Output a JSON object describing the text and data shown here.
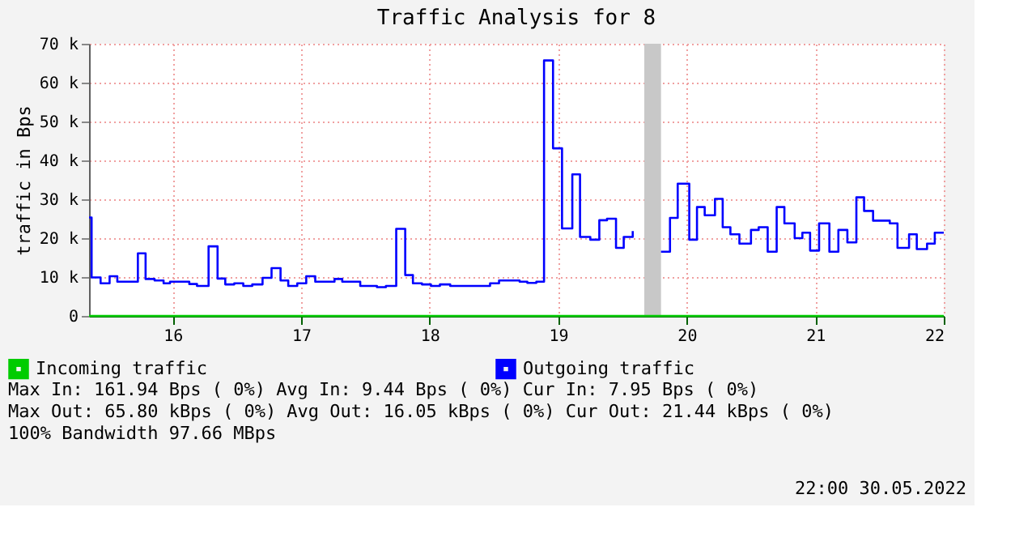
{
  "chart_data": {
    "type": "step",
    "title": "Traffic Analysis for 8",
    "ylabel": "traffic in Bps",
    "xlim": [
      15.35,
      22
    ],
    "xticks": [
      16,
      17,
      18,
      19,
      20,
      21,
      22
    ],
    "ylim": [
      0,
      70000
    ],
    "yticks": [
      0,
      {
        "value": 10000,
        "label": "10 k"
      },
      {
        "value": 20000,
        "label": "20 k"
      },
      {
        "value": 30000,
        "label": "30 k"
      },
      {
        "value": 40000,
        "label": "40 k"
      },
      {
        "value": 50000,
        "label": "50 k"
      },
      {
        "value": 60000,
        "label": "60 k"
      },
      {
        "value": 70000,
        "label": "70 k"
      }
    ],
    "grid": true,
    "legend": "bottom left",
    "bands": [
      {
        "axis": "x",
        "from": 19.67,
        "to": 19.8,
        "color": "#c8c8c8"
      }
    ],
    "series": [
      {
        "name": "Incoming traffic",
        "color": "#00cc00",
        "x": [
          15.35,
          22
        ],
        "values": [
          0,
          0
        ]
      },
      {
        "name": "Outgoing traffic",
        "color": "#0000ff",
        "x": [
          15.35,
          15.37,
          15.44,
          15.51,
          15.57,
          15.73,
          15.79,
          15.86,
          15.93,
          15.98,
          16.13,
          16.19,
          16.28,
          16.35,
          16.41,
          16.48,
          16.55,
          16.62,
          16.7,
          16.77,
          16.84,
          16.9,
          16.97,
          17.04,
          17.11,
          17.26,
          17.32,
          17.46,
          17.59,
          17.66,
          17.74,
          17.81,
          17.87,
          17.94,
          18.01,
          18.08,
          18.16,
          18.47,
          18.54,
          18.7,
          18.76,
          18.83,
          18.89,
          18.96,
          19.03,
          19.11,
          19.17,
          19.25,
          19.32,
          19.38,
          19.45,
          19.51,
          19.58,
          19.67,
          19.8,
          19.87,
          19.93,
          20.02,
          20.08,
          20.14,
          20.22,
          20.28,
          20.34,
          20.41,
          20.5,
          20.56,
          20.63,
          20.7,
          20.76,
          20.84,
          20.9,
          20.96,
          21.03,
          21.11,
          21.18,
          21.25,
          21.32,
          21.38,
          21.45,
          21.58,
          21.64,
          21.73,
          21.79,
          21.87,
          21.93,
          22.0
        ],
        "values": [
          25300,
          9900,
          8400,
          10200,
          8800,
          16100,
          9500,
          9100,
          8400,
          8800,
          8200,
          7700,
          17900,
          9600,
          8100,
          8400,
          7700,
          8100,
          9800,
          12300,
          9100,
          7700,
          8400,
          10200,
          8800,
          9500,
          8800,
          7700,
          7400,
          7700,
          22400,
          10500,
          8400,
          8100,
          7700,
          8100,
          7700,
          8400,
          9100,
          8800,
          8500,
          8800,
          65700,
          43100,
          22500,
          36400,
          20300,
          19600,
          24600,
          25000,
          17500,
          20300,
          21800,
          null,
          16500,
          25200,
          34000,
          19600,
          28000,
          25900,
          30100,
          22800,
          21000,
          18600,
          22100,
          22800,
          16500,
          28000,
          23800,
          20000,
          21400,
          16800,
          23800,
          16500,
          22100,
          18900,
          30500,
          27000,
          24500,
          23800,
          17500,
          21000,
          17200,
          18600,
          21400,
          21400
        ]
      }
    ],
    "annotations": [
      "Max In: 161.94  Bps ( 0%)  Avg In:   9.44  Bps ( 0%)  Cur In:   7.95  Bps ( 0%)",
      "Max Out: 65.80 kBps ( 0%)  Avg Out: 16.05 kBps ( 0%)  Cur Out: 21.44 kBps ( 0%)",
      "100% Bandwidth 97.66 MBps",
      "22:00 30.05.2022"
    ]
  }
}
